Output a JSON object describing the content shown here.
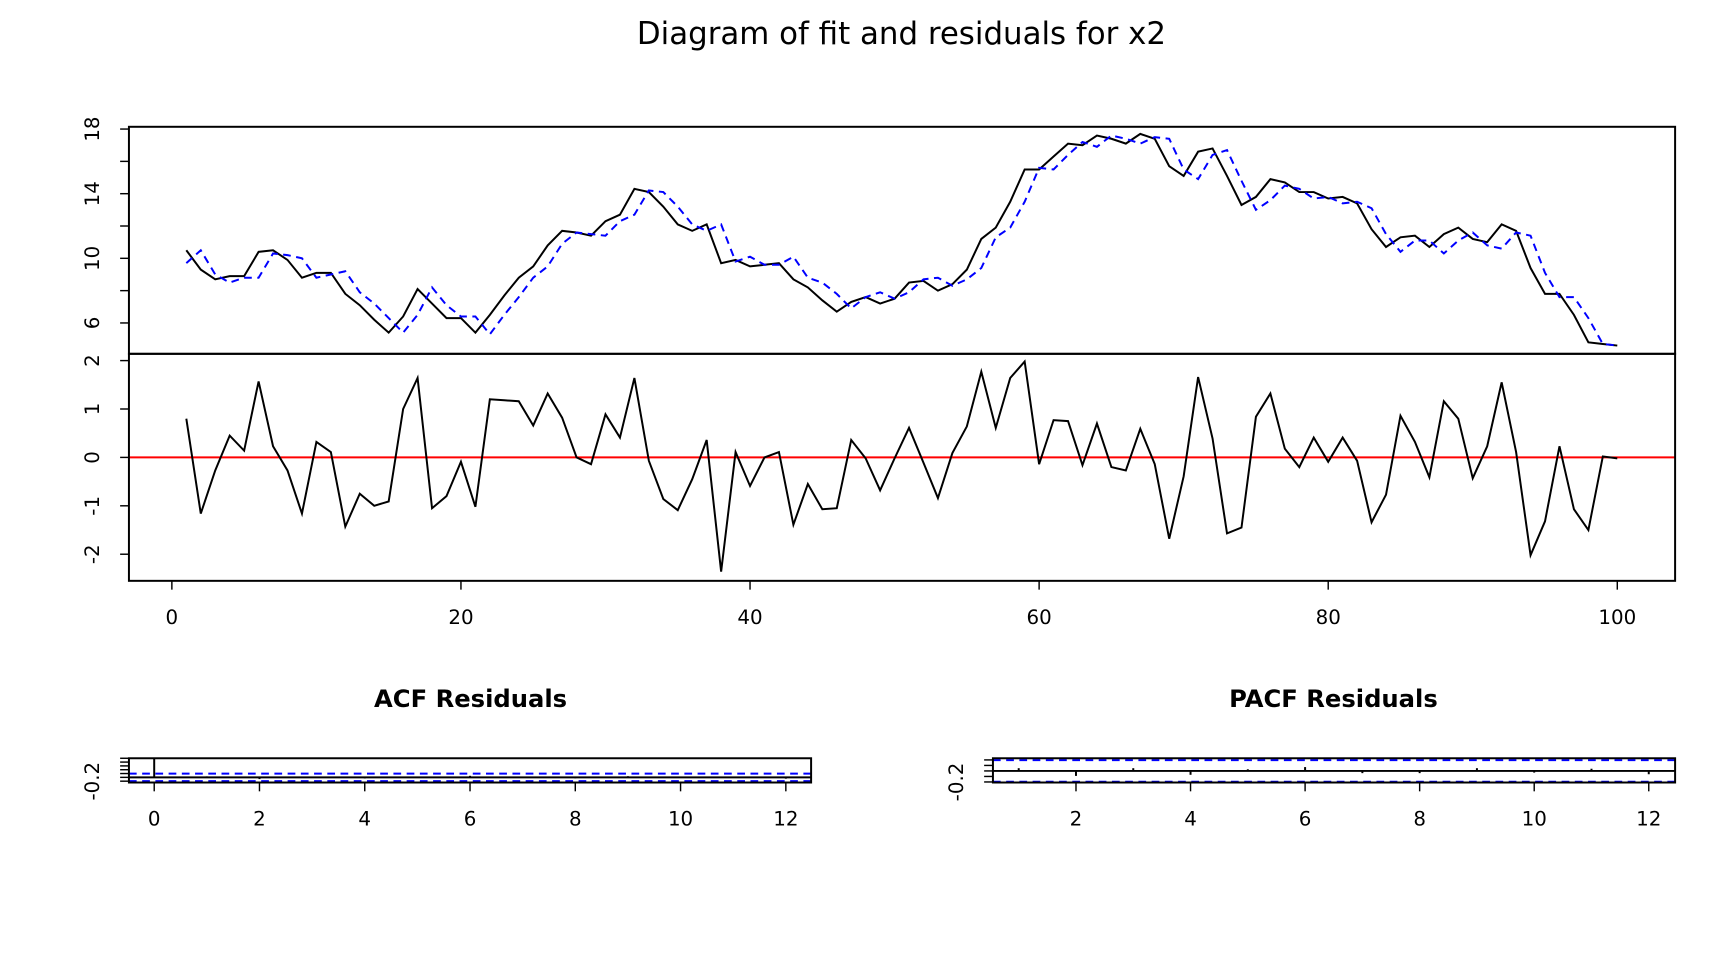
{
  "chart_data": [
    {
      "type": "line",
      "title": "Diagram of fit and residuals for x2",
      "x": [
        1,
        2,
        3,
        4,
        5,
        6,
        7,
        8,
        9,
        10,
        11,
        12,
        13,
        14,
        15,
        16,
        17,
        18,
        19,
        20,
        21,
        22,
        23,
        24,
        25,
        26,
        27,
        28,
        29,
        30,
        31,
        32,
        33,
        34,
        35,
        36,
        37,
        38,
        39,
        40,
        41,
        42,
        43,
        44,
        45,
        46,
        47,
        48,
        49,
        50,
        51,
        52,
        53,
        54,
        55,
        56,
        57,
        58,
        59,
        60,
        61,
        62,
        63,
        64,
        65,
        66,
        67,
        68,
        69,
        70,
        71,
        72,
        73,
        74,
        75,
        76,
        77,
        78,
        79,
        80,
        81,
        82,
        83,
        84,
        85,
        86,
        87,
        88,
        89,
        90,
        91,
        92,
        93,
        94,
        95,
        96,
        97,
        98,
        99,
        100
      ],
      "series": [
        {
          "color": "#000000",
          "linestyle": "solid",
          "values": [
            10.5,
            9.3,
            8.7,
            8.9,
            8.9,
            10.4,
            10.5,
            9.9,
            8.8,
            9.1,
            9.1,
            7.8,
            7.1,
            6.2,
            5.4,
            6.4,
            8.1,
            7.2,
            6.3,
            6.3,
            5.4,
            6.5,
            7.7,
            8.8,
            9.5,
            10.8,
            11.7,
            11.6,
            11.4,
            12.3,
            12.7,
            14.3,
            14.1,
            13.2,
            12.1,
            11.7,
            12.1,
            9.7,
            9.9,
            9.5,
            9.6,
            9.7,
            8.7,
            8.2,
            7.4,
            6.7,
            7.3,
            7.6,
            7.2,
            7.5,
            8.5,
            8.6,
            8.0,
            8.4,
            9.3,
            11.2,
            11.9,
            13.5,
            15.5,
            15.5,
            16.3,
            17.1,
            17.0,
            17.6,
            17.4,
            17.1,
            17.7,
            17.4,
            15.7,
            15.1,
            16.6,
            16.8,
            15.1,
            13.3,
            13.8,
            14.9,
            14.7,
            14.1,
            14.1,
            13.7,
            13.8,
            13.4,
            11.8,
            10.7,
            11.3,
            11.4,
            10.7,
            11.5,
            11.9,
            11.2,
            11.0,
            12.1,
            11.7,
            9.4,
            7.8,
            7.8,
            6.5,
            4.8,
            4.7,
            4.6
          ]
        },
        {
          "color": "#0000ff",
          "linestyle": "dashed",
          "values": [
            9.7,
            10.5,
            9.0,
            8.5,
            8.8,
            8.8,
            10.3,
            10.2,
            10.0,
            8.8,
            9.0,
            9.2,
            7.9,
            7.2,
            6.3,
            5.4,
            6.5,
            8.2,
            7.1,
            6.4,
            6.4,
            5.3,
            6.5,
            7.6,
            8.8,
            9.5,
            10.9,
            11.6,
            11.5,
            11.4,
            12.3,
            12.7,
            14.2,
            14.1,
            13.2,
            12.1,
            11.7,
            12.1,
            9.8,
            10.1,
            9.6,
            9.6,
            10.1,
            8.8,
            8.5,
            7.8,
            6.9,
            7.6,
            7.9,
            7.5,
            7.9,
            8.7,
            8.8,
            8.3,
            8.7,
            9.4,
            11.3,
            11.9,
            13.5,
            15.6,
            15.5,
            16.4,
            17.2,
            16.9,
            17.6,
            17.4,
            17.1,
            17.5,
            17.4,
            15.5,
            14.9,
            16.4,
            16.7,
            14.8,
            13.0,
            13.6,
            14.5,
            14.3,
            13.7,
            13.8,
            13.4,
            13.5,
            13.1,
            11.5,
            10.4,
            11.1,
            11.1,
            10.3,
            11.1,
            11.6,
            10.8,
            10.6,
            11.6,
            11.4,
            9.1,
            7.6,
            7.6,
            6.3,
            4.7,
            4.6
          ]
        }
      ],
      "xlim": [
        -2.97,
        104.0
      ],
      "ylim": [
        4.09,
        18.14
      ],
      "yticks": [
        6,
        10,
        14,
        18
      ],
      "yminor_ticks": [
        8,
        12,
        16
      ]
    },
    {
      "type": "line",
      "x": [
        1,
        2,
        3,
        4,
        5,
        6,
        7,
        8,
        9,
        10,
        11,
        12,
        13,
        14,
        15,
        16,
        17,
        18,
        19,
        20,
        21,
        22,
        23,
        24,
        25,
        26,
        27,
        28,
        29,
        30,
        31,
        32,
        33,
        34,
        35,
        36,
        37,
        38,
        39,
        40,
        41,
        42,
        43,
        44,
        45,
        46,
        47,
        48,
        49,
        50,
        51,
        52,
        53,
        54,
        55,
        56,
        57,
        58,
        59,
        60,
        61,
        62,
        63,
        64,
        65,
        66,
        67,
        68,
        69,
        70,
        71,
        72,
        73,
        74,
        75,
        76,
        77,
        78,
        79,
        80,
        81,
        82,
        83,
        84,
        85,
        86,
        87,
        88,
        89,
        90,
        91,
        92,
        93,
        94,
        95,
        96,
        97,
        98,
        99,
        100
      ],
      "series": [
        {
          "color": "#000000",
          "linestyle": "solid",
          "values": [
            0.8,
            -1.16,
            -0.27,
            0.45,
            0.14,
            1.57,
            0.23,
            -0.27,
            -1.16,
            0.32,
            0.11,
            -1.43,
            -0.75,
            -1.0,
            -0.91,
            1.0,
            1.64,
            -1.05,
            -0.8,
            -0.09,
            -1.02,
            1.2,
            1.18,
            1.16,
            0.66,
            1.32,
            0.82,
            0.0,
            -0.14,
            0.89,
            0.41,
            1.64,
            -0.07,
            -0.86,
            -1.09,
            -0.45,
            0.36,
            -2.36,
            0.11,
            -0.59,
            0.0,
            0.11,
            -1.39,
            -0.55,
            -1.07,
            -1.05,
            0.36,
            -0.02,
            -0.68,
            -0.02,
            0.61,
            -0.11,
            -0.84,
            0.09,
            0.64,
            1.77,
            0.61,
            1.64,
            1.98,
            -0.14,
            0.77,
            0.75,
            -0.16,
            0.7,
            -0.2,
            -0.27,
            0.59,
            -0.14,
            -1.68,
            -0.39,
            1.66,
            0.39,
            -1.57,
            -1.45,
            0.84,
            1.32,
            0.18,
            -0.2,
            0.41,
            -0.09,
            0.41,
            -0.07,
            -1.34,
            -0.77,
            0.86,
            0.32,
            -0.41,
            1.16,
            0.8,
            -0.43,
            0.23,
            1.55,
            0.11,
            -2.02,
            -1.32,
            0.23,
            -1.07,
            -1.5,
            0.02,
            -0.02
          ]
        }
      ],
      "hline": 0,
      "hline_color": "#ff0000",
      "xlim": [
        -2.97,
        104.0
      ],
      "xticks": [
        0,
        20,
        40,
        60,
        80,
        100
      ],
      "ylim": [
        -2.55,
        2.14
      ],
      "yticks": [
        -2,
        -1,
        0,
        1,
        2
      ]
    },
    {
      "type": "acf",
      "title": "ACF Residuals",
      "color": "#000000",
      "x": [
        0,
        1,
        2,
        3,
        4,
        5,
        6,
        7,
        8,
        9,
        10,
        11,
        12
      ],
      "values": [
        1,
        0.05,
        -0.09,
        0.04,
        -0.06,
        0.02,
        0.08,
        -0.03,
        -0.05,
        0.06,
        -0.02,
        0.04,
        -0.07
      ],
      "conf_limits": [
        -0.196,
        0.196
      ],
      "conf_color": "#0000ff",
      "hline": 0,
      "hline_color": "#000000",
      "xlim": [
        -0.48,
        12.48
      ],
      "xticks": [
        0,
        2,
        4,
        6,
        8,
        10,
        12
      ],
      "ylim": [
        -0.27,
        1.0
      ],
      "yticks": [
        -0.2
      ],
      "yminor_ticks": [
        0,
        0.2,
        0.4,
        0.6,
        0.8,
        1.0
      ]
    },
    {
      "type": "acf",
      "title": "PACF Residuals",
      "color": "#000000",
      "x": [
        1,
        2,
        3,
        4,
        5,
        6,
        7,
        8,
        9,
        10,
        11,
        12
      ],
      "values": [
        0.05,
        -0.09,
        0.05,
        -0.07,
        0.03,
        0.07,
        -0.04,
        -0.04,
        0.05,
        -0.03,
        0.04,
        -0.06
      ],
      "conf_limits": [
        -0.196,
        0.196
      ],
      "conf_color": "#0000ff",
      "hline": 0,
      "hline_color": "#000000",
      "xlim": [
        0.55,
        12.46
      ],
      "xticks": [
        2,
        4,
        6,
        8,
        10,
        12
      ],
      "ylim": [
        -0.21,
        0.23
      ],
      "yticks": [
        -0.2
      ],
      "yminor_ticks": [
        -0.1,
        0,
        0.1,
        0.2
      ]
    }
  ]
}
